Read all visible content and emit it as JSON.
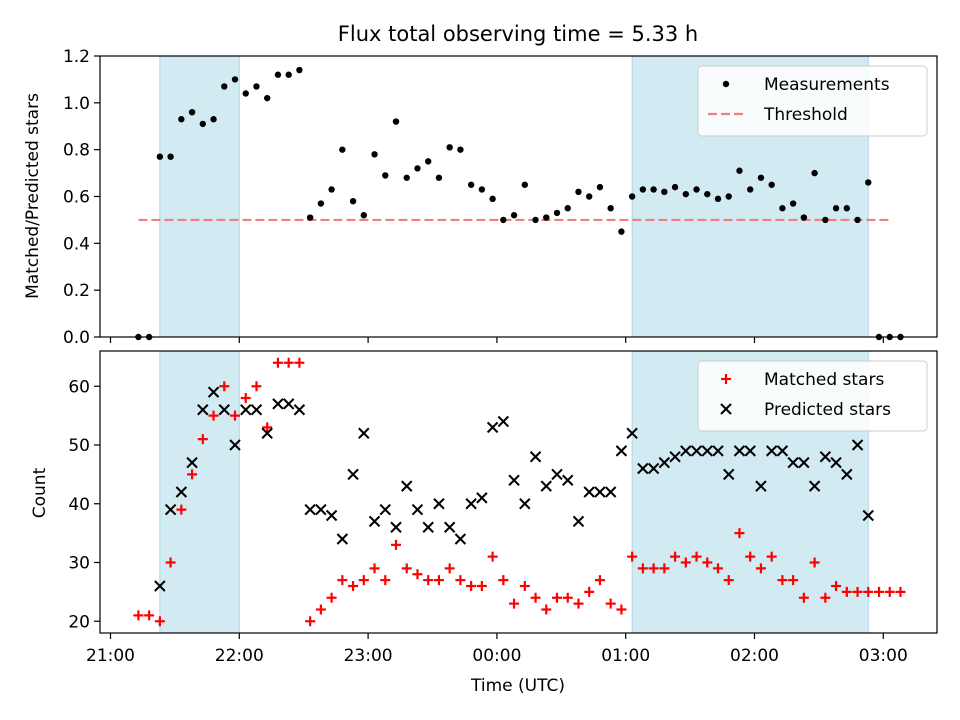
{
  "chart_data": [
    {
      "type": "scatter",
      "title": "Flux total observing time = 5.33 h",
      "xlabel": "",
      "ylabel": "Matched/Predicted stars",
      "ylim": [
        0,
        1.2
      ],
      "yticks": [
        "0.0",
        "0.2",
        "0.4",
        "0.6",
        "0.8",
        "1.0",
        "1.2"
      ],
      "ytick_values": [
        0,
        0.2,
        0.4,
        0.6,
        0.8,
        1.0,
        1.2
      ],
      "legend_placement": "top-right",
      "shaded_intervals_color": "#add8e6",
      "shaded_intervals": [
        [
          "21:23",
          "22:00"
        ],
        [
          "01:03",
          "02:53"
        ]
      ],
      "series": [
        {
          "name": "Measurements",
          "marker": "dot",
          "color": "#000000",
          "points": [
            [
              "21:13",
              0.0
            ],
            [
              "21:18",
              0.0
            ],
            [
              "21:23",
              0.77
            ],
            [
              "21:28",
              0.77
            ],
            [
              "21:33",
              0.93
            ],
            [
              "21:38",
              0.96
            ],
            [
              "21:43",
              0.91
            ],
            [
              "21:48",
              0.93
            ],
            [
              "21:53",
              1.07
            ],
            [
              "21:58",
              1.1
            ],
            [
              "22:03",
              1.04
            ],
            [
              "22:08",
              1.07
            ],
            [
              "22:13",
              1.02
            ],
            [
              "22:18",
              1.12
            ],
            [
              "22:23",
              1.12
            ],
            [
              "22:28",
              1.14
            ],
            [
              "22:33",
              0.51
            ],
            [
              "22:38",
              0.57
            ],
            [
              "22:43",
              0.63
            ],
            [
              "22:48",
              0.8
            ],
            [
              "22:53",
              0.58
            ],
            [
              "22:58",
              0.52
            ],
            [
              "23:03",
              0.78
            ],
            [
              "23:08",
              0.69
            ],
            [
              "23:13",
              0.92
            ],
            [
              "23:18",
              0.68
            ],
            [
              "23:23",
              0.72
            ],
            [
              "23:28",
              0.75
            ],
            [
              "23:33",
              0.68
            ],
            [
              "23:38",
              0.81
            ],
            [
              "23:43",
              0.8
            ],
            [
              "23:48",
              0.65
            ],
            [
              "23:53",
              0.63
            ],
            [
              "23:58",
              0.59
            ],
            [
              "00:03",
              0.5
            ],
            [
              "00:08",
              0.52
            ],
            [
              "00:13",
              0.65
            ],
            [
              "00:18",
              0.5
            ],
            [
              "00:23",
              0.51
            ],
            [
              "00:28",
              0.53
            ],
            [
              "00:33",
              0.55
            ],
            [
              "00:38",
              0.62
            ],
            [
              "00:43",
              0.6
            ],
            [
              "00:48",
              0.64
            ],
            [
              "00:53",
              0.55
            ],
            [
              "00:58",
              0.45
            ],
            [
              "01:03",
              0.6
            ],
            [
              "01:08",
              0.63
            ],
            [
              "01:13",
              0.63
            ],
            [
              "01:18",
              0.62
            ],
            [
              "01:23",
              0.64
            ],
            [
              "01:28",
              0.61
            ],
            [
              "01:33",
              0.63
            ],
            [
              "01:38",
              0.61
            ],
            [
              "01:43",
              0.59
            ],
            [
              "01:48",
              0.6
            ],
            [
              "01:53",
              0.71
            ],
            [
              "01:58",
              0.63
            ],
            [
              "02:03",
              0.68
            ],
            [
              "02:08",
              0.65
            ],
            [
              "02:13",
              0.55
            ],
            [
              "02:18",
              0.57
            ],
            [
              "02:23",
              0.51
            ],
            [
              "02:28",
              0.7
            ],
            [
              "02:33",
              0.5
            ],
            [
              "02:38",
              0.55
            ],
            [
              "02:43",
              0.55
            ],
            [
              "02:48",
              0.5
            ],
            [
              "02:53",
              0.66
            ],
            [
              "02:58",
              0.0
            ],
            [
              "03:03",
              0.0
            ],
            [
              "03:08",
              0.0
            ]
          ]
        },
        {
          "name": "Threshold",
          "marker": "dashed-line",
          "color": "#f08080",
          "points": [
            [
              "21:13",
              0.5
            ],
            [
              "03:03",
              0.5
            ]
          ]
        }
      ]
    },
    {
      "type": "scatter",
      "title": "",
      "xlabel": "Time (UTC)",
      "ylabel": "Count",
      "ylim": [
        18,
        66
      ],
      "yticks": [
        "20",
        "30",
        "40",
        "50",
        "60"
      ],
      "ytick_values": [
        20,
        30,
        40,
        50,
        60
      ],
      "xticks": [
        "21:00",
        "22:00",
        "23:00",
        "00:00",
        "01:00",
        "02:00",
        "03:00"
      ],
      "legend_placement": "top-right",
      "shaded_intervals_color": "#add8e6",
      "shaded_intervals": [
        [
          "21:23",
          "22:00"
        ],
        [
          "01:03",
          "02:53"
        ]
      ],
      "series": [
        {
          "name": "Matched stars",
          "marker": "plus",
          "color": "#ff0000",
          "points": [
            [
              "21:13",
              21
            ],
            [
              "21:18",
              21
            ],
            [
              "21:23",
              20
            ],
            [
              "21:28",
              30
            ],
            [
              "21:33",
              39
            ],
            [
              "21:38",
              45
            ],
            [
              "21:43",
              51
            ],
            [
              "21:48",
              55
            ],
            [
              "21:53",
              60
            ],
            [
              "21:58",
              55
            ],
            [
              "22:03",
              58
            ],
            [
              "22:08",
              60
            ],
            [
              "22:13",
              53
            ],
            [
              "22:18",
              64
            ],
            [
              "22:23",
              64
            ],
            [
              "22:28",
              64
            ],
            [
              "22:33",
              20
            ],
            [
              "22:38",
              22
            ],
            [
              "22:43",
              24
            ],
            [
              "22:48",
              27
            ],
            [
              "22:53",
              26
            ],
            [
              "22:58",
              27
            ],
            [
              "23:03",
              29
            ],
            [
              "23:08",
              27
            ],
            [
              "23:13",
              33
            ],
            [
              "23:18",
              29
            ],
            [
              "23:23",
              28
            ],
            [
              "23:28",
              27
            ],
            [
              "23:33",
              27
            ],
            [
              "23:38",
              29
            ],
            [
              "23:43",
              27
            ],
            [
              "23:48",
              26
            ],
            [
              "23:53",
              26
            ],
            [
              "23:58",
              31
            ],
            [
              "00:03",
              27
            ],
            [
              "00:08",
              23
            ],
            [
              "00:13",
              26
            ],
            [
              "00:18",
              24
            ],
            [
              "00:23",
              22
            ],
            [
              "00:28",
              24
            ],
            [
              "00:33",
              24
            ],
            [
              "00:38",
              23
            ],
            [
              "00:43",
              25
            ],
            [
              "00:48",
              27
            ],
            [
              "00:53",
              23
            ],
            [
              "00:58",
              22
            ],
            [
              "01:03",
              31
            ],
            [
              "01:08",
              29
            ],
            [
              "01:13",
              29
            ],
            [
              "01:18",
              29
            ],
            [
              "01:23",
              31
            ],
            [
              "01:28",
              30
            ],
            [
              "01:33",
              31
            ],
            [
              "01:38",
              30
            ],
            [
              "01:43",
              29
            ],
            [
              "01:48",
              27
            ],
            [
              "01:53",
              35
            ],
            [
              "01:58",
              31
            ],
            [
              "02:03",
              29
            ],
            [
              "02:08",
              31
            ],
            [
              "02:13",
              27
            ],
            [
              "02:18",
              27
            ],
            [
              "02:23",
              24
            ],
            [
              "02:28",
              30
            ],
            [
              "02:33",
              24
            ],
            [
              "02:38",
              26
            ],
            [
              "02:43",
              25
            ],
            [
              "02:48",
              25
            ],
            [
              "02:53",
              25
            ],
            [
              "02:58",
              25
            ],
            [
              "03:03",
              25
            ],
            [
              "03:08",
              25
            ]
          ]
        },
        {
          "name": "Predicted stars",
          "marker": "cross",
          "color": "#000000",
          "points": [
            [
              "21:23",
              26
            ],
            [
              "21:28",
              39
            ],
            [
              "21:33",
              42
            ],
            [
              "21:38",
              47
            ],
            [
              "21:43",
              56
            ],
            [
              "21:48",
              59
            ],
            [
              "21:53",
              56
            ],
            [
              "21:58",
              50
            ],
            [
              "22:03",
              56
            ],
            [
              "22:08",
              56
            ],
            [
              "22:13",
              52
            ],
            [
              "22:18",
              57
            ],
            [
              "22:23",
              57
            ],
            [
              "22:28",
              56
            ],
            [
              "22:33",
              39
            ],
            [
              "22:38",
              39
            ],
            [
              "22:43",
              38
            ],
            [
              "22:48",
              34
            ],
            [
              "22:53",
              45
            ],
            [
              "22:58",
              52
            ],
            [
              "23:03",
              37
            ],
            [
              "23:08",
              39
            ],
            [
              "23:13",
              36
            ],
            [
              "23:18",
              43
            ],
            [
              "23:23",
              39
            ],
            [
              "23:28",
              36
            ],
            [
              "23:33",
              40
            ],
            [
              "23:38",
              36
            ],
            [
              "23:43",
              34
            ],
            [
              "23:48",
              40
            ],
            [
              "23:53",
              41
            ],
            [
              "23:58",
              53
            ],
            [
              "00:03",
              54
            ],
            [
              "00:08",
              44
            ],
            [
              "00:13",
              40
            ],
            [
              "00:18",
              48
            ],
            [
              "00:23",
              43
            ],
            [
              "00:28",
              45
            ],
            [
              "00:33",
              44
            ],
            [
              "00:38",
              37
            ],
            [
              "00:43",
              42
            ],
            [
              "00:48",
              42
            ],
            [
              "00:53",
              42
            ],
            [
              "00:58",
              49
            ],
            [
              "01:03",
              52
            ],
            [
              "01:08",
              46
            ],
            [
              "01:13",
              46
            ],
            [
              "01:18",
              47
            ],
            [
              "01:23",
              48
            ],
            [
              "01:28",
              49
            ],
            [
              "01:33",
              49
            ],
            [
              "01:38",
              49
            ],
            [
              "01:43",
              49
            ],
            [
              "01:48",
              45
            ],
            [
              "01:53",
              49
            ],
            [
              "01:58",
              49
            ],
            [
              "02:03",
              43
            ],
            [
              "02:08",
              49
            ],
            [
              "02:13",
              49
            ],
            [
              "02:18",
              47
            ],
            [
              "02:23",
              47
            ],
            [
              "02:28",
              43
            ],
            [
              "02:33",
              48
            ],
            [
              "02:38",
              47
            ],
            [
              "02:43",
              45
            ],
            [
              "02:48",
              50
            ],
            [
              "02:53",
              38
            ]
          ]
        }
      ]
    }
  ]
}
